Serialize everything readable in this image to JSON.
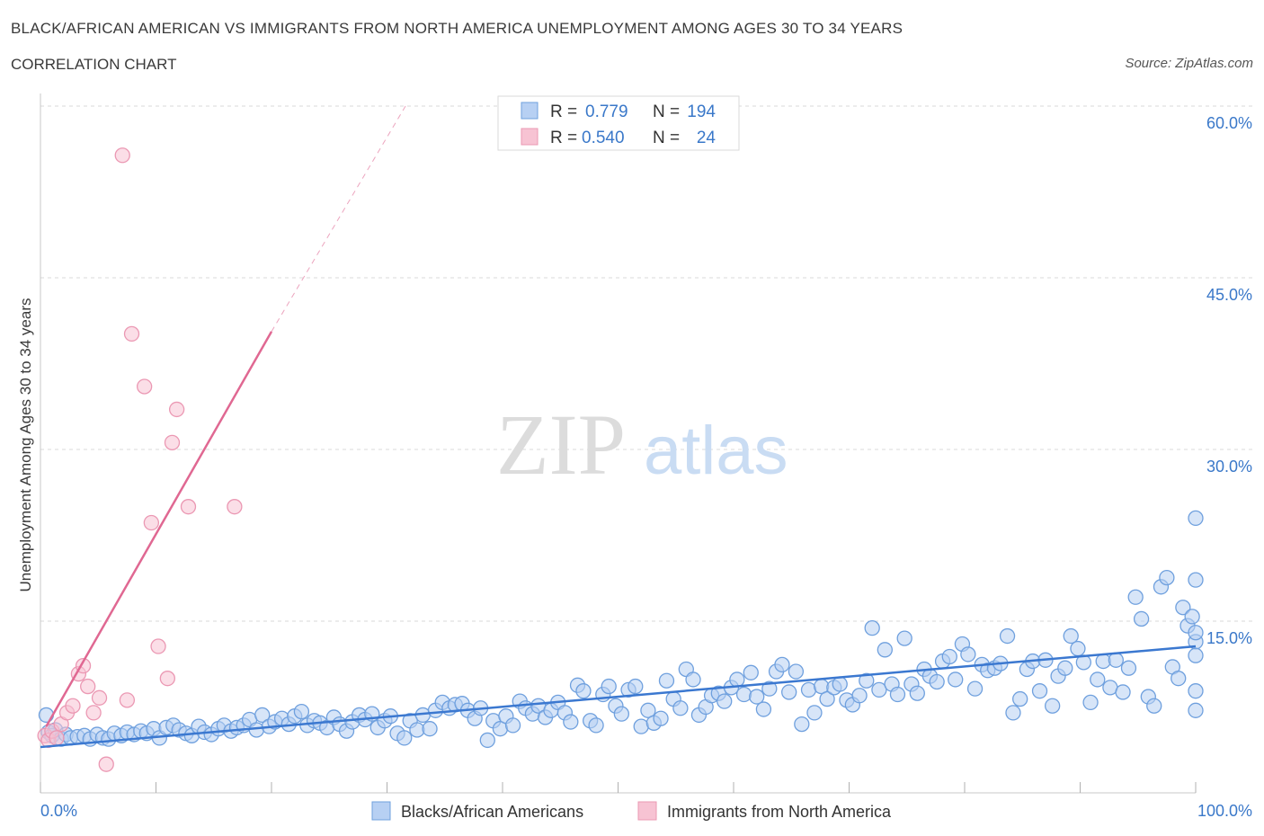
{
  "header": {
    "title": "BLACK/AFRICAN AMERICAN VS IMMIGRANTS FROM NORTH AMERICA UNEMPLOYMENT AMONG AGES 30 TO 34 YEARS",
    "subtitle": "CORRELATION CHART",
    "source": "Source: ZipAtlas.com"
  },
  "watermark": {
    "zip": "ZIP",
    "atlas": "atlas"
  },
  "colors": {
    "blue_fill": "#b7d0f3",
    "blue_stroke": "#6fa0de",
    "blue_line": "#3b78d0",
    "pink_fill": "#f7c3d3",
    "pink_stroke": "#eb98b3",
    "pink_line": "#e06892",
    "value_text": "#3a78c9",
    "grid": "#d9d9d9"
  },
  "chart_data": {
    "type": "scatter",
    "title": "BLACK/AFRICAN AMERICAN VS IMMIGRANTS FROM NORTH AMERICA UNEMPLOYMENT AMONG AGES 30 TO 34 YEARS",
    "xlabel": "",
    "ylabel": "Unemployment Among Ages 30 to 34 years",
    "xlim": [
      0,
      100
    ],
    "ylim": [
      0,
      60
    ],
    "x_tick_labels": [
      "0.0%",
      "100.0%"
    ],
    "y_ticks": [
      15,
      30,
      45,
      60
    ],
    "y_tick_labels": [
      "15.0%",
      "30.0%",
      "45.0%",
      "60.0%"
    ],
    "grid": true,
    "legend_position": "bottom",
    "stats": [
      {
        "label_r": "R =",
        "r": "0.779",
        "label_n": "N =",
        "n": "194"
      },
      {
        "label_r": "R =",
        "r": "0.540",
        "label_n": "N =",
        "n": "24"
      }
    ],
    "series": [
      {
        "name": "Blacks/African Americans",
        "color": "blue",
        "trend": {
          "x0": 0,
          "y0": 4.0,
          "x1": 100,
          "y1": 12.8,
          "dashed_to": null
        },
        "points": [
          [
            0.5,
            6.8
          ],
          [
            0.7,
            5.3
          ],
          [
            1,
            5
          ],
          [
            1.3,
            5.5
          ],
          [
            1.8,
            4.7
          ],
          [
            2.2,
            5.1
          ],
          [
            2.6,
            4.8
          ],
          [
            3.2,
            4.9
          ],
          [
            3.8,
            5.0
          ],
          [
            4.3,
            4.7
          ],
          [
            4.9,
            5.1
          ],
          [
            5.4,
            4.8
          ],
          [
            5.9,
            4.7
          ],
          [
            6.4,
            5.2
          ],
          [
            7.0,
            5.0
          ],
          [
            7.5,
            5.3
          ],
          [
            8.1,
            5.1
          ],
          [
            8.7,
            5.4
          ],
          [
            9.2,
            5.2
          ],
          [
            9.8,
            5.6
          ],
          [
            10.3,
            4.8
          ],
          [
            10.9,
            5.7
          ],
          [
            11.5,
            5.9
          ],
          [
            12.0,
            5.5
          ],
          [
            12.6,
            5.2
          ],
          [
            13.1,
            5.0
          ],
          [
            13.7,
            5.8
          ],
          [
            14.2,
            5.3
          ],
          [
            14.8,
            5.1
          ],
          [
            15.4,
            5.6
          ],
          [
            15.9,
            5.9
          ],
          [
            16.5,
            5.4
          ],
          [
            17.0,
            5.7
          ],
          [
            17.6,
            5.9
          ],
          [
            18.1,
            6.4
          ],
          [
            18.7,
            5.5
          ],
          [
            19.2,
            6.8
          ],
          [
            19.8,
            5.8
          ],
          [
            20.3,
            6.2
          ],
          [
            20.9,
            6.5
          ],
          [
            21.5,
            6.0
          ],
          [
            22.0,
            6.7
          ],
          [
            22.6,
            7.1
          ],
          [
            23.1,
            5.9
          ],
          [
            23.7,
            6.3
          ],
          [
            24.2,
            6.1
          ],
          [
            24.8,
            5.7
          ],
          [
            25.4,
            6.6
          ],
          [
            25.9,
            6.0
          ],
          [
            26.5,
            5.4
          ],
          [
            27.0,
            6.2
          ],
          [
            27.6,
            6.8
          ],
          [
            28.1,
            6.4
          ],
          [
            28.7,
            6.9
          ],
          [
            29.2,
            5.7
          ],
          [
            29.8,
            6.3
          ],
          [
            30.3,
            6.7
          ],
          [
            30.9,
            5.2
          ],
          [
            31.5,
            4.8
          ],
          [
            32.0,
            6.3
          ],
          [
            32.6,
            5.5
          ],
          [
            33.1,
            6.8
          ],
          [
            33.7,
            5.6
          ],
          [
            34.2,
            7.2
          ],
          [
            34.8,
            7.9
          ],
          [
            35.4,
            7.4
          ],
          [
            35.9,
            7.7
          ],
          [
            36.5,
            7.8
          ],
          [
            37.0,
            7.2
          ],
          [
            37.6,
            6.5
          ],
          [
            38.1,
            7.4
          ],
          [
            38.7,
            4.6
          ],
          [
            39.2,
            6.3
          ],
          [
            39.8,
            5.6
          ],
          [
            40.3,
            6.7
          ],
          [
            40.9,
            5.9
          ],
          [
            41.5,
            8.0
          ],
          [
            42.0,
            7.4
          ],
          [
            42.6,
            6.9
          ],
          [
            43.1,
            7.6
          ],
          [
            43.7,
            6.6
          ],
          [
            44.2,
            7.2
          ],
          [
            44.8,
            7.9
          ],
          [
            45.4,
            7.0
          ],
          [
            45.9,
            6.2
          ],
          [
            46.5,
            9.4
          ],
          [
            47.0,
            8.9
          ],
          [
            47.6,
            6.3
          ],
          [
            48.1,
            5.9
          ],
          [
            48.7,
            8.6
          ],
          [
            49.2,
            9.3
          ],
          [
            49.8,
            7.6
          ],
          [
            50.3,
            6.9
          ],
          [
            50.9,
            9.0
          ],
          [
            51.5,
            9.3
          ],
          [
            52.0,
            5.8
          ],
          [
            52.6,
            7.2
          ],
          [
            53.1,
            6.1
          ],
          [
            53.7,
            6.5
          ],
          [
            54.2,
            9.8
          ],
          [
            54.8,
            8.2
          ],
          [
            55.4,
            7.4
          ],
          [
            55.9,
            10.8
          ],
          [
            56.5,
            9.9
          ],
          [
            57.0,
            6.8
          ],
          [
            57.6,
            7.5
          ],
          [
            58.1,
            8.5
          ],
          [
            58.7,
            8.7
          ],
          [
            59.2,
            8.0
          ],
          [
            59.8,
            9.2
          ],
          [
            60.3,
            9.9
          ],
          [
            60.9,
            8.6
          ],
          [
            61.5,
            10.5
          ],
          [
            62.0,
            8.4
          ],
          [
            62.6,
            7.3
          ],
          [
            63.1,
            9.1
          ],
          [
            63.7,
            10.6
          ],
          [
            64.2,
            11.2
          ],
          [
            64.8,
            8.8
          ],
          [
            65.4,
            10.6
          ],
          [
            65.9,
            6.0
          ],
          [
            66.5,
            9.0
          ],
          [
            67.0,
            7.0
          ],
          [
            67.6,
            9.3
          ],
          [
            68.1,
            8.2
          ],
          [
            68.7,
            9.2
          ],
          [
            69.2,
            9.5
          ],
          [
            69.8,
            8.1
          ],
          [
            70.3,
            7.7
          ],
          [
            70.9,
            8.5
          ],
          [
            71.5,
            9.8
          ],
          [
            72.0,
            14.4
          ],
          [
            72.6,
            9.0
          ],
          [
            73.1,
            12.5
          ],
          [
            73.7,
            9.5
          ],
          [
            74.2,
            8.6
          ],
          [
            74.8,
            13.5
          ],
          [
            75.4,
            9.5
          ],
          [
            75.9,
            8.7
          ],
          [
            76.5,
            10.8
          ],
          [
            77.0,
            10.2
          ],
          [
            77.6,
            9.7
          ],
          [
            78.1,
            11.5
          ],
          [
            78.7,
            11.9
          ],
          [
            79.2,
            9.9
          ],
          [
            79.8,
            13.0
          ],
          [
            80.3,
            12.1
          ],
          [
            80.9,
            9.1
          ],
          [
            81.5,
            11.2
          ],
          [
            82.0,
            10.7
          ],
          [
            82.6,
            10.9
          ],
          [
            83.1,
            11.3
          ],
          [
            83.7,
            13.7
          ],
          [
            84.2,
            7.0
          ],
          [
            84.8,
            8.2
          ],
          [
            85.4,
            10.8
          ],
          [
            85.9,
            11.5
          ],
          [
            86.5,
            8.9
          ],
          [
            87.0,
            11.6
          ],
          [
            87.6,
            7.6
          ],
          [
            88.1,
            10.2
          ],
          [
            88.7,
            10.9
          ],
          [
            89.2,
            13.7
          ],
          [
            89.8,
            12.6
          ],
          [
            90.3,
            11.4
          ],
          [
            90.9,
            7.9
          ],
          [
            91.5,
            9.9
          ],
          [
            92.0,
            11.5
          ],
          [
            92.6,
            9.2
          ],
          [
            93.1,
            11.6
          ],
          [
            93.7,
            8.8
          ],
          [
            94.2,
            10.9
          ],
          [
            94.8,
            17.1
          ],
          [
            95.3,
            15.2
          ],
          [
            95.9,
            8.4
          ],
          [
            96.4,
            7.6
          ],
          [
            97.0,
            18.0
          ],
          [
            97.5,
            18.8
          ],
          [
            98.0,
            11.0
          ],
          [
            98.5,
            10.0
          ],
          [
            98.9,
            16.2
          ],
          [
            99.3,
            14.6
          ],
          [
            99.7,
            15.4
          ],
          [
            100,
            18.6
          ],
          [
            100,
            8.9
          ],
          [
            100,
            24.0
          ],
          [
            100,
            13.2
          ],
          [
            100,
            14.0
          ],
          [
            100,
            7.2
          ],
          [
            100,
            12.0
          ]
        ]
      },
      {
        "name": "Immigrants from North America",
        "color": "pink",
        "trend": {
          "x0": 0.5,
          "y0": 5.8,
          "x1": 20,
          "y1": 40.3,
          "dashed_to": {
            "x": 31.6,
            "y": 60
          }
        },
        "points": [
          [
            0.4,
            5.0
          ],
          [
            0.7,
            4.6
          ],
          [
            1.0,
            5.4
          ],
          [
            1.4,
            4.8
          ],
          [
            1.8,
            6.0
          ],
          [
            2.3,
            7.0
          ],
          [
            2.8,
            7.6
          ],
          [
            3.3,
            10.4
          ],
          [
            3.7,
            11.1
          ],
          [
            4.1,
            9.3
          ],
          [
            4.6,
            7.0
          ],
          [
            5.1,
            8.3
          ],
          [
            5.7,
            2.5
          ],
          [
            7.1,
            55.7
          ],
          [
            7.5,
            8.1
          ],
          [
            7.9,
            40.1
          ],
          [
            9.0,
            35.5
          ],
          [
            9.6,
            23.6
          ],
          [
            10.2,
            12.8
          ],
          [
            11.0,
            10.0
          ],
          [
            11.4,
            30.6
          ],
          [
            11.8,
            33.5
          ],
          [
            12.8,
            25.0
          ],
          [
            16.8,
            25.0
          ]
        ]
      }
    ]
  }
}
